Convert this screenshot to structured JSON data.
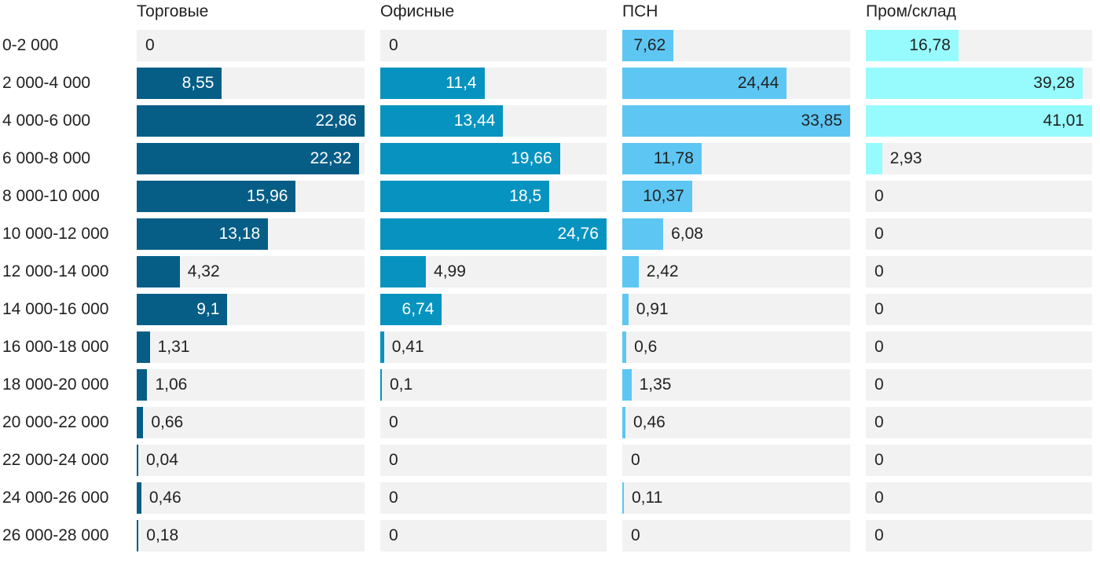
{
  "chart_data": {
    "type": "bar",
    "orientation": "horizontal",
    "layout": "small-multiples",
    "categories": [
      "0-2 000",
      "2 000-4 000",
      "4 000-6 000",
      "6 000-8 000",
      "8 000-10 000",
      "10 000-12 000",
      "12 000-14 000",
      "14 000-16 000",
      "16 000-18 000",
      "18 000-20 000",
      "20 000-22 000",
      "22 000-24 000",
      "24 000-26 000",
      "26 000-28 000"
    ],
    "series": [
      {
        "name": "Торговые",
        "color": "#065e86",
        "label_inside_color": "#ffffff",
        "values": [
          0,
          8.55,
          22.86,
          22.32,
          15.96,
          13.18,
          4.32,
          9.1,
          1.31,
          1.06,
          0.66,
          0.04,
          0.46,
          0.18
        ],
        "labels": [
          "0",
          "8,55",
          "22,86",
          "22,32",
          "15,96",
          "13,18",
          "4,32",
          "9,1",
          "1,31",
          "1,06",
          "0,66",
          "0,04",
          "0,46",
          "0,18"
        ],
        "xlim": [
          0,
          22.86
        ]
      },
      {
        "name": "Офисные",
        "color": "#0793bf",
        "label_inside_color": "#ffffff",
        "values": [
          0,
          11.4,
          13.44,
          19.66,
          18.5,
          24.76,
          4.99,
          6.74,
          0.41,
          0.1,
          0,
          0,
          0,
          0
        ],
        "labels": [
          "0",
          "11,4",
          "13,44",
          "19,66",
          "18,5",
          "24,76",
          "4,99",
          "6,74",
          "0,41",
          "0,1",
          "0",
          "0",
          "0",
          "0"
        ],
        "xlim": [
          0,
          24.76
        ]
      },
      {
        "name": "ПСН",
        "color": "#5ec6f2",
        "label_inside_color": "#222222",
        "values": [
          7.62,
          24.44,
          33.85,
          11.78,
          10.37,
          6.08,
          2.42,
          0.91,
          0.6,
          1.35,
          0.46,
          0,
          0.11,
          0
        ],
        "labels": [
          "7,62",
          "24,44",
          "33,85",
          "11,78",
          "10,37",
          "6,08",
          "2,42",
          "0,91",
          "0,6",
          "1,35",
          "0,46",
          "0",
          "0,11",
          "0"
        ],
        "xlim": [
          0,
          33.85
        ]
      },
      {
        "name": "Пром/склад",
        "color": "#97fbfd",
        "label_inside_color": "#222222",
        "values": [
          16.78,
          39.28,
          41.01,
          2.93,
          0,
          0,
          0,
          0,
          0,
          0,
          0,
          0,
          0,
          0
        ],
        "labels": [
          "16,78",
          "39,28",
          "41,01",
          "2,93",
          "0",
          "0",
          "0",
          "0",
          "0",
          "0",
          "0",
          "0",
          "0",
          "0"
        ],
        "xlim": [
          0,
          41.01
        ]
      }
    ],
    "title": "",
    "xlabel": "",
    "ylabel": "",
    "grid": false,
    "legend": "none"
  }
}
